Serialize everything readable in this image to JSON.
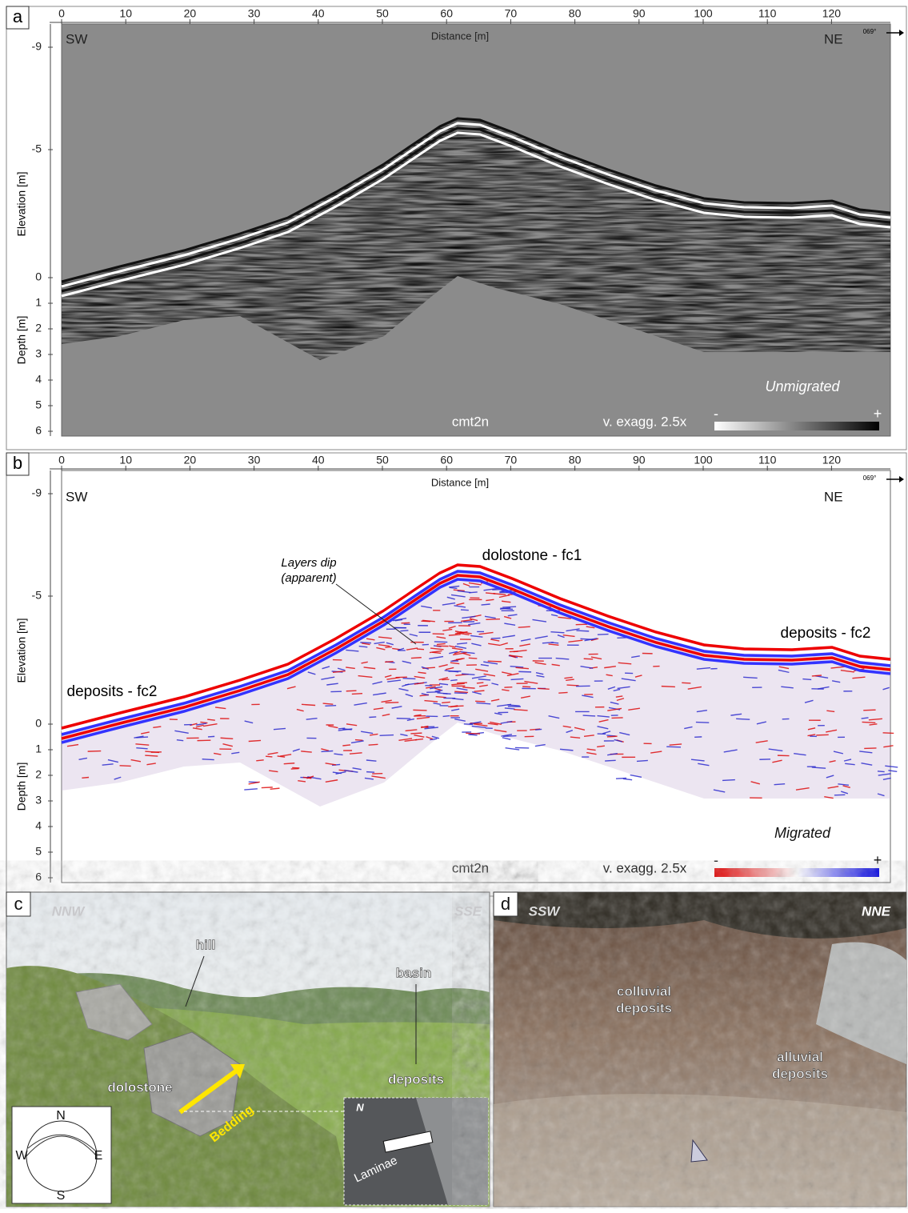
{
  "panels": [
    {
      "label": "a",
      "x_axis_label": "Distance [m]",
      "xticks": [
        0,
        10,
        20,
        30,
        40,
        50,
        60,
        70,
        80,
        90,
        100,
        110,
        120
      ],
      "elevation_label": "Elevation [m]",
      "elevation_ticks": [
        -9,
        -5,
        0
      ],
      "depth_label": "Depth [m]",
      "depth_ticks": [
        1,
        2,
        3,
        4,
        5,
        6
      ],
      "left": "SW",
      "right": "NE",
      "azimuth": "069°",
      "profile": "cmt2n",
      "exaggeration": "v. exagg. 2.5x",
      "processing": "Unmigrated",
      "scale_minus": "-",
      "scale_plus": "+"
    },
    {
      "label": "b",
      "x_axis_label": "Distance [m]",
      "xticks": [
        0,
        10,
        20,
        30,
        40,
        50,
        60,
        70,
        80,
        90,
        100,
        110,
        120
      ],
      "elevation_label": "Elevation [m]",
      "elevation_ticks": [
        -9,
        -5,
        0
      ],
      "depth_label": "Depth [m]",
      "depth_ticks": [
        1,
        2,
        3,
        4,
        5,
        6
      ],
      "left": "SW",
      "right": "NE",
      "azimuth": "069°",
      "profile": "cmt2n",
      "exaggeration": "v. exagg. 2.5x",
      "processing": "Migrated",
      "scale_minus": "-",
      "scale_plus": "+",
      "annotations": {
        "layers_dip": [
          "Layers dip",
          "(apparent)"
        ],
        "crest": "dolostone - fc1",
        "deposits_right": "deposits - fc2",
        "deposits_left": "deposits - fc2"
      }
    }
  ],
  "photo_c": {
    "label": "c",
    "left": "NNW",
    "right": "SSE",
    "hill": "hill",
    "basin": "basin",
    "deposits": "deposits",
    "dolostone": "dolostone",
    "bedding": "Bedding",
    "stereonet": {
      "n": "N",
      "w": "W",
      "e": "E",
      "s": "S"
    },
    "inset": {
      "north": "N",
      "laminae": "Laminae"
    }
  },
  "photo_d": {
    "label": "d",
    "left": "SSW",
    "right": "NNE",
    "colluvial": [
      "colluvial",
      "deposits"
    ],
    "alluvial": [
      "alluvial",
      "deposits"
    ]
  }
}
